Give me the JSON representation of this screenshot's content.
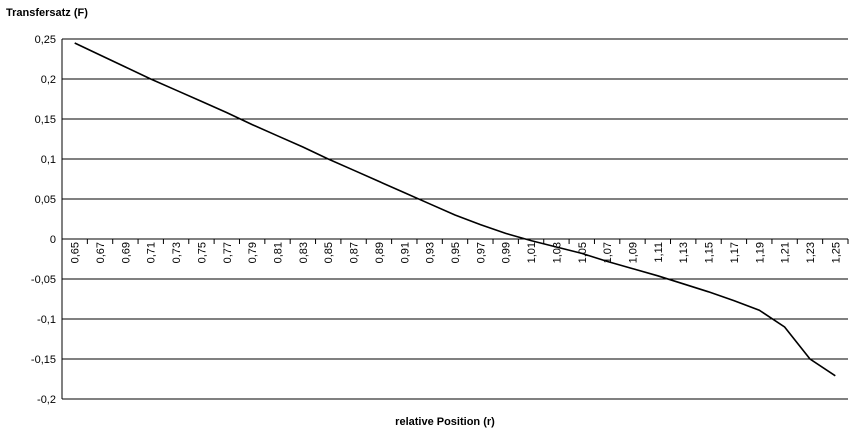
{
  "chart_data": {
    "type": "line",
    "ylabel": "Transfersatz (F)",
    "xlabel": "relative Position (r)",
    "ylim": [
      -0.2,
      0.25
    ],
    "yticks": [
      0.25,
      0.2,
      0.15,
      0.1,
      0.05,
      0,
      -0.05,
      -0.1,
      -0.15,
      -0.2
    ],
    "ytick_labels": [
      "0,25",
      "0,2",
      "0,15",
      "0,1",
      "0,05",
      "0",
      "-0,05",
      "-0,1",
      "-0,15",
      "-0,2"
    ],
    "grid": true,
    "legend": "none",
    "categories": [
      "0,65",
      "0,67",
      "0,69",
      "0,71",
      "0,73",
      "0,75",
      "0,77",
      "0,79",
      "0,81",
      "0,83",
      "0,85",
      "0,87",
      "0,89",
      "0,91",
      "0,93",
      "0,95",
      "0,97",
      "0,99",
      "1,01",
      "1,03",
      "1,05",
      "1,07",
      "1,09",
      "1,11",
      "1,13",
      "1,15",
      "1,17",
      "1,19",
      "1,21",
      "1,23",
      "1,25"
    ],
    "series": [
      {
        "values": [
          0.245,
          0.23,
          0.215,
          0.2,
          0.186,
          0.172,
          0.158,
          0.143,
          0.129,
          0.115,
          0.1,
          0.086,
          0.072,
          0.058,
          0.044,
          0.03,
          0.018,
          0.007,
          -0.002,
          -0.01,
          -0.018,
          -0.028,
          -0.037,
          -0.046,
          -0.056,
          -0.066,
          -0.077,
          -0.089,
          -0.11,
          -0.15,
          -0.171
        ]
      }
    ]
  }
}
